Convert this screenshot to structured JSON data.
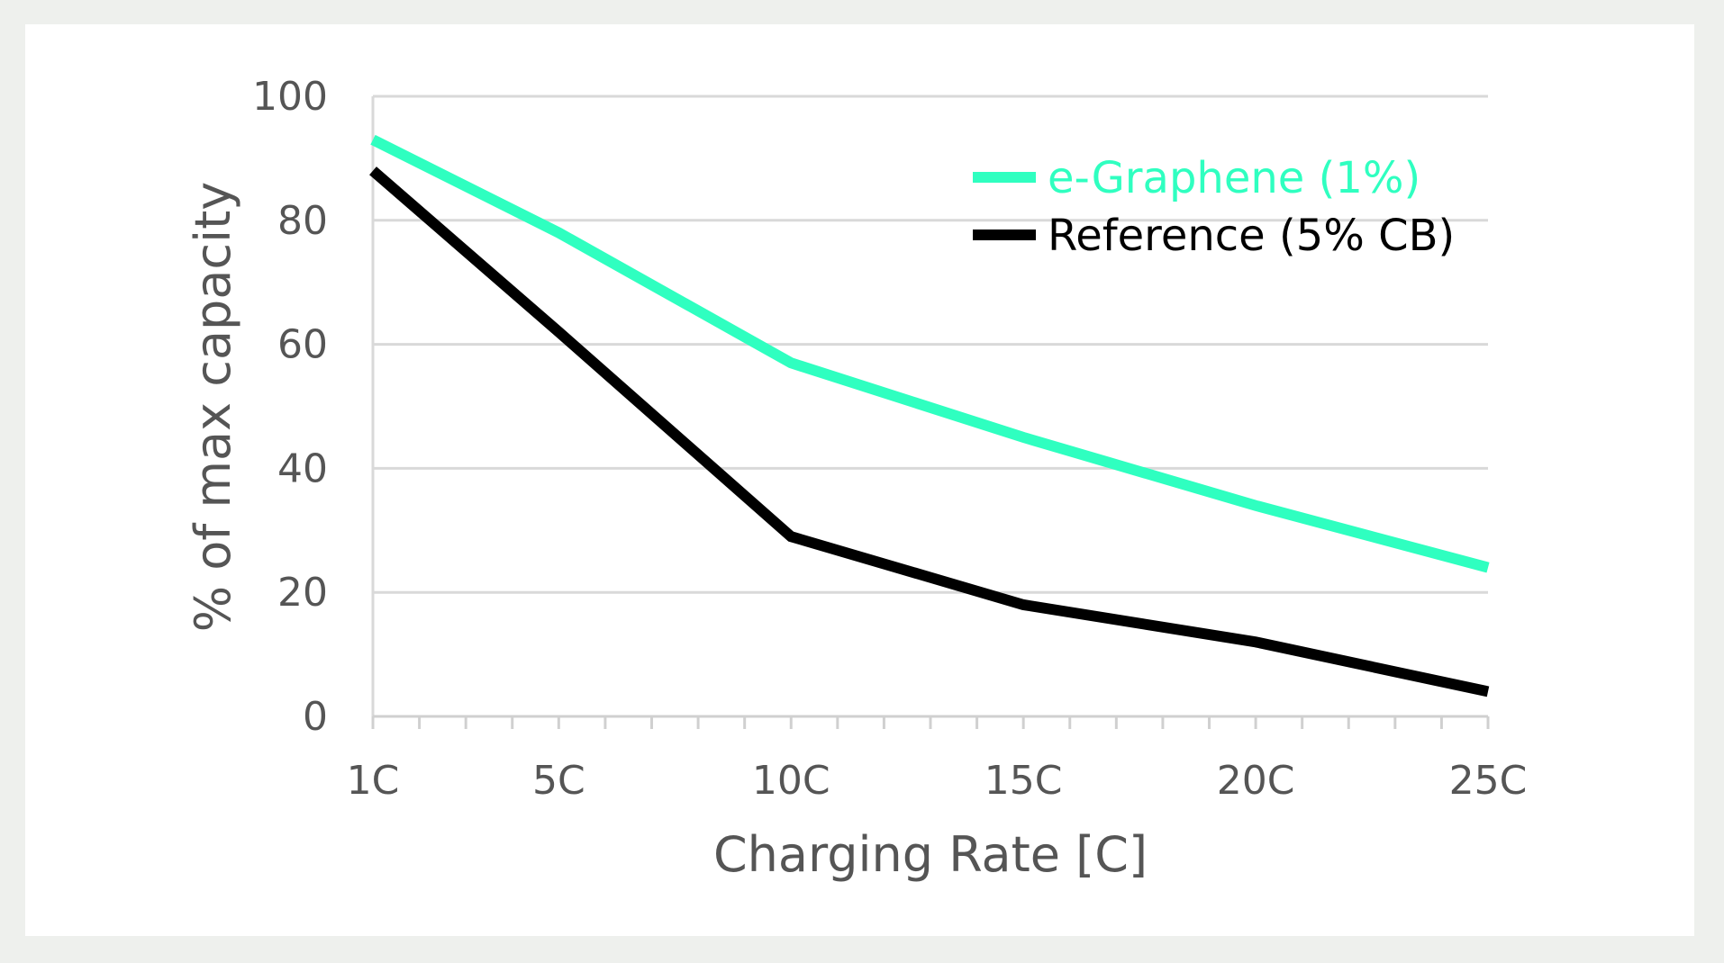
{
  "chart_data": {
    "type": "line",
    "title": "",
    "xlabel": "Charging Rate [C]",
    "ylabel": "% of max capacity",
    "x": [
      1,
      5,
      10,
      15,
      20,
      25
    ],
    "xticklabels": [
      "1C",
      "5C",
      "10C",
      "15C",
      "20C",
      "25C"
    ],
    "xlim": [
      1,
      25
    ],
    "ylim": [
      0,
      100
    ],
    "yticks": [
      0,
      20,
      40,
      60,
      80,
      100
    ],
    "grid": true,
    "legend_position": "top-right",
    "series": [
      {
        "name": "e-Graphene (1%)",
        "color": "#2fffc0",
        "values": [
          93,
          78,
          57,
          45,
          34,
          24
        ]
      },
      {
        "name": "Reference (5% CB)",
        "color": "#000000",
        "values": [
          88,
          62,
          29,
          18,
          12,
          4
        ]
      }
    ]
  }
}
